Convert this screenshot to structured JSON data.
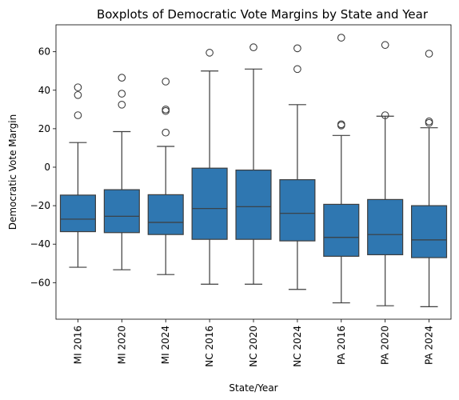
{
  "chart_data": {
    "type": "boxplot",
    "title": "Boxplots of Democratic Vote Margins by State and Year",
    "xlabel": "State/Year",
    "ylabel": "Democratic Vote Margin",
    "ylim": [
      -79,
      74
    ],
    "yticks": [
      -60,
      -40,
      -20,
      0,
      20,
      40,
      60
    ],
    "grid": false,
    "box_color": "#2f77b1",
    "line_color": "#3d3d3d",
    "categories": [
      "MI 2016",
      "MI 2020",
      "MI 2024",
      "NC 2016",
      "NC 2020",
      "NC 2024",
      "PA 2016",
      "PA 2020",
      "PA 2024"
    ],
    "boxes": [
      {
        "whisker_low": -52.0,
        "q1": -33.5,
        "median": -27.0,
        "q3": -14.5,
        "whisker_high": 12.8,
        "outliers": [
          27.0,
          37.5,
          41.5
        ]
      },
      {
        "whisker_low": -53.3,
        "q1": -34.0,
        "median": -25.5,
        "q3": -11.7,
        "whisker_high": 18.5,
        "outliers": [
          32.5,
          38.2,
          46.5
        ]
      },
      {
        "whisker_low": -55.8,
        "q1": -35.0,
        "median": -28.7,
        "q3": -14.3,
        "whisker_high": 10.8,
        "outliers": [
          18.0,
          29.2,
          30.0,
          44.5
        ]
      },
      {
        "whisker_low": -60.8,
        "q1": -37.5,
        "median": -21.5,
        "q3": -0.5,
        "whisker_high": 50.0,
        "outliers": [
          59.5
        ]
      },
      {
        "whisker_low": -60.8,
        "q1": -37.5,
        "median": -20.5,
        "q3": -1.5,
        "whisker_high": 51.0,
        "outliers": [
          62.3
        ]
      },
      {
        "whisker_low": -63.5,
        "q1": -38.3,
        "median": -24.0,
        "q3": -6.5,
        "whisker_high": 32.5,
        "outliers": [
          51.0,
          61.8
        ]
      },
      {
        "whisker_low": -70.5,
        "q1": -46.3,
        "median": -36.5,
        "q3": -19.3,
        "whisker_high": 16.5,
        "outliers": [
          21.7,
          22.3,
          67.3
        ]
      },
      {
        "whisker_low": -72.0,
        "q1": -45.5,
        "median": -35.0,
        "q3": -16.8,
        "whisker_high": 26.5,
        "outliers": [
          27.0,
          63.5
        ]
      },
      {
        "whisker_low": -72.5,
        "q1": -47.0,
        "median": -37.8,
        "q3": -20.0,
        "whisker_high": 20.5,
        "outliers": [
          23.0,
          23.8,
          59.0
        ]
      }
    ]
  }
}
